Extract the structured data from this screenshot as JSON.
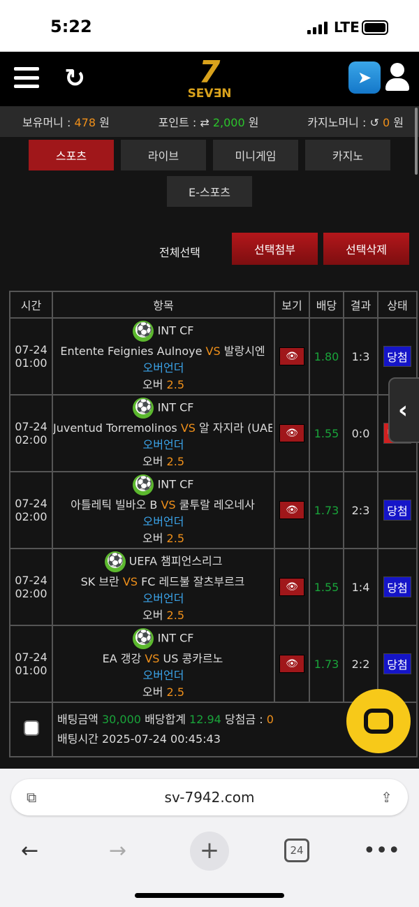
{
  "status_bar": {
    "time": "5:22",
    "network": "LTE"
  },
  "header": {
    "logo": "7 SEVEN"
  },
  "money": {
    "hold_label": "보유머니 :",
    "hold_value": "478",
    "hold_unit": "원",
    "point_label": "포인트 :",
    "point_value": "2,000",
    "point_unit": "원",
    "casino_label": "카지노머니 :",
    "casino_value": "0",
    "casino_unit": "원"
  },
  "tabs": [
    {
      "label": "스포츠",
      "active": true
    },
    {
      "label": "라이브"
    },
    {
      "label": "미니게임"
    },
    {
      "label": "카지노"
    },
    {
      "label": "E-스포츠"
    }
  ],
  "actions": {
    "select_all": "전체선택",
    "attach": "선택첨부",
    "delete": "선택삭제"
  },
  "table": {
    "headers": [
      "시간",
      "항목",
      "보기",
      "배당",
      "결과",
      "상태"
    ],
    "rows": [
      {
        "date": "07-24",
        "time": "01:00",
        "league": "INT CF",
        "home": "Entente Feignies Aulnoye",
        "vs": "VS",
        "away": "발랑시엔",
        "market": "오버언더",
        "pick": "오버",
        "line": "2.5",
        "odds": "1.80",
        "result": "1:3",
        "status": "당첨",
        "status_color": "#1515c8"
      },
      {
        "date": "07-24",
        "time": "02:00",
        "league": "INT CF",
        "home": "Juventud Torremolinos",
        "vs": "VS",
        "away": "알 자지라 (UAE)",
        "market": "오버언더",
        "pick": "오버",
        "line": "2.5",
        "odds": "1.55",
        "result": "0:0",
        "status": "낙첨",
        "status_color": "#d02020"
      },
      {
        "date": "07-24",
        "time": "02:00",
        "league": "INT CF",
        "home": "아틀레틱 빌바오 B",
        "vs": "VS",
        "away": "쿨투랄 레오네사",
        "market": "오버언더",
        "pick": "오버",
        "line": "2.5",
        "odds": "1.73",
        "result": "2:3",
        "status": "당첨",
        "status_color": "#1515c8"
      },
      {
        "date": "07-24",
        "time": "02:00",
        "league": "UEFA 챔피언스리그",
        "home": "SK 브란",
        "vs": "VS",
        "away": "FC 레드불 잘츠부르크",
        "market": "오버언더",
        "pick": "오버",
        "line": "2.5",
        "odds": "1.55",
        "result": "1:4",
        "status": "당첨",
        "status_color": "#1515c8"
      },
      {
        "date": "07-24",
        "time": "01:00",
        "league": "INT CF",
        "home": "EA 갱강",
        "vs": "VS",
        "away": "US 콩카르노",
        "market": "오버언더",
        "pick": "오버",
        "line": "2.5",
        "odds": "1.73",
        "result": "2:2",
        "status": "당첨",
        "status_color": "#1515c8"
      }
    ],
    "footer": {
      "bet_label": "배팅금액",
      "bet_value": "30,000",
      "odds_label": "배당합계",
      "odds_value": "12.94",
      "win_label": "당첨금 :",
      "win_value": "0",
      "time_label": "배팅시간",
      "time_value": "2025-07-24 00:45:43"
    }
  },
  "browser": {
    "url": "sv-7942.com",
    "tab_count": "24"
  }
}
